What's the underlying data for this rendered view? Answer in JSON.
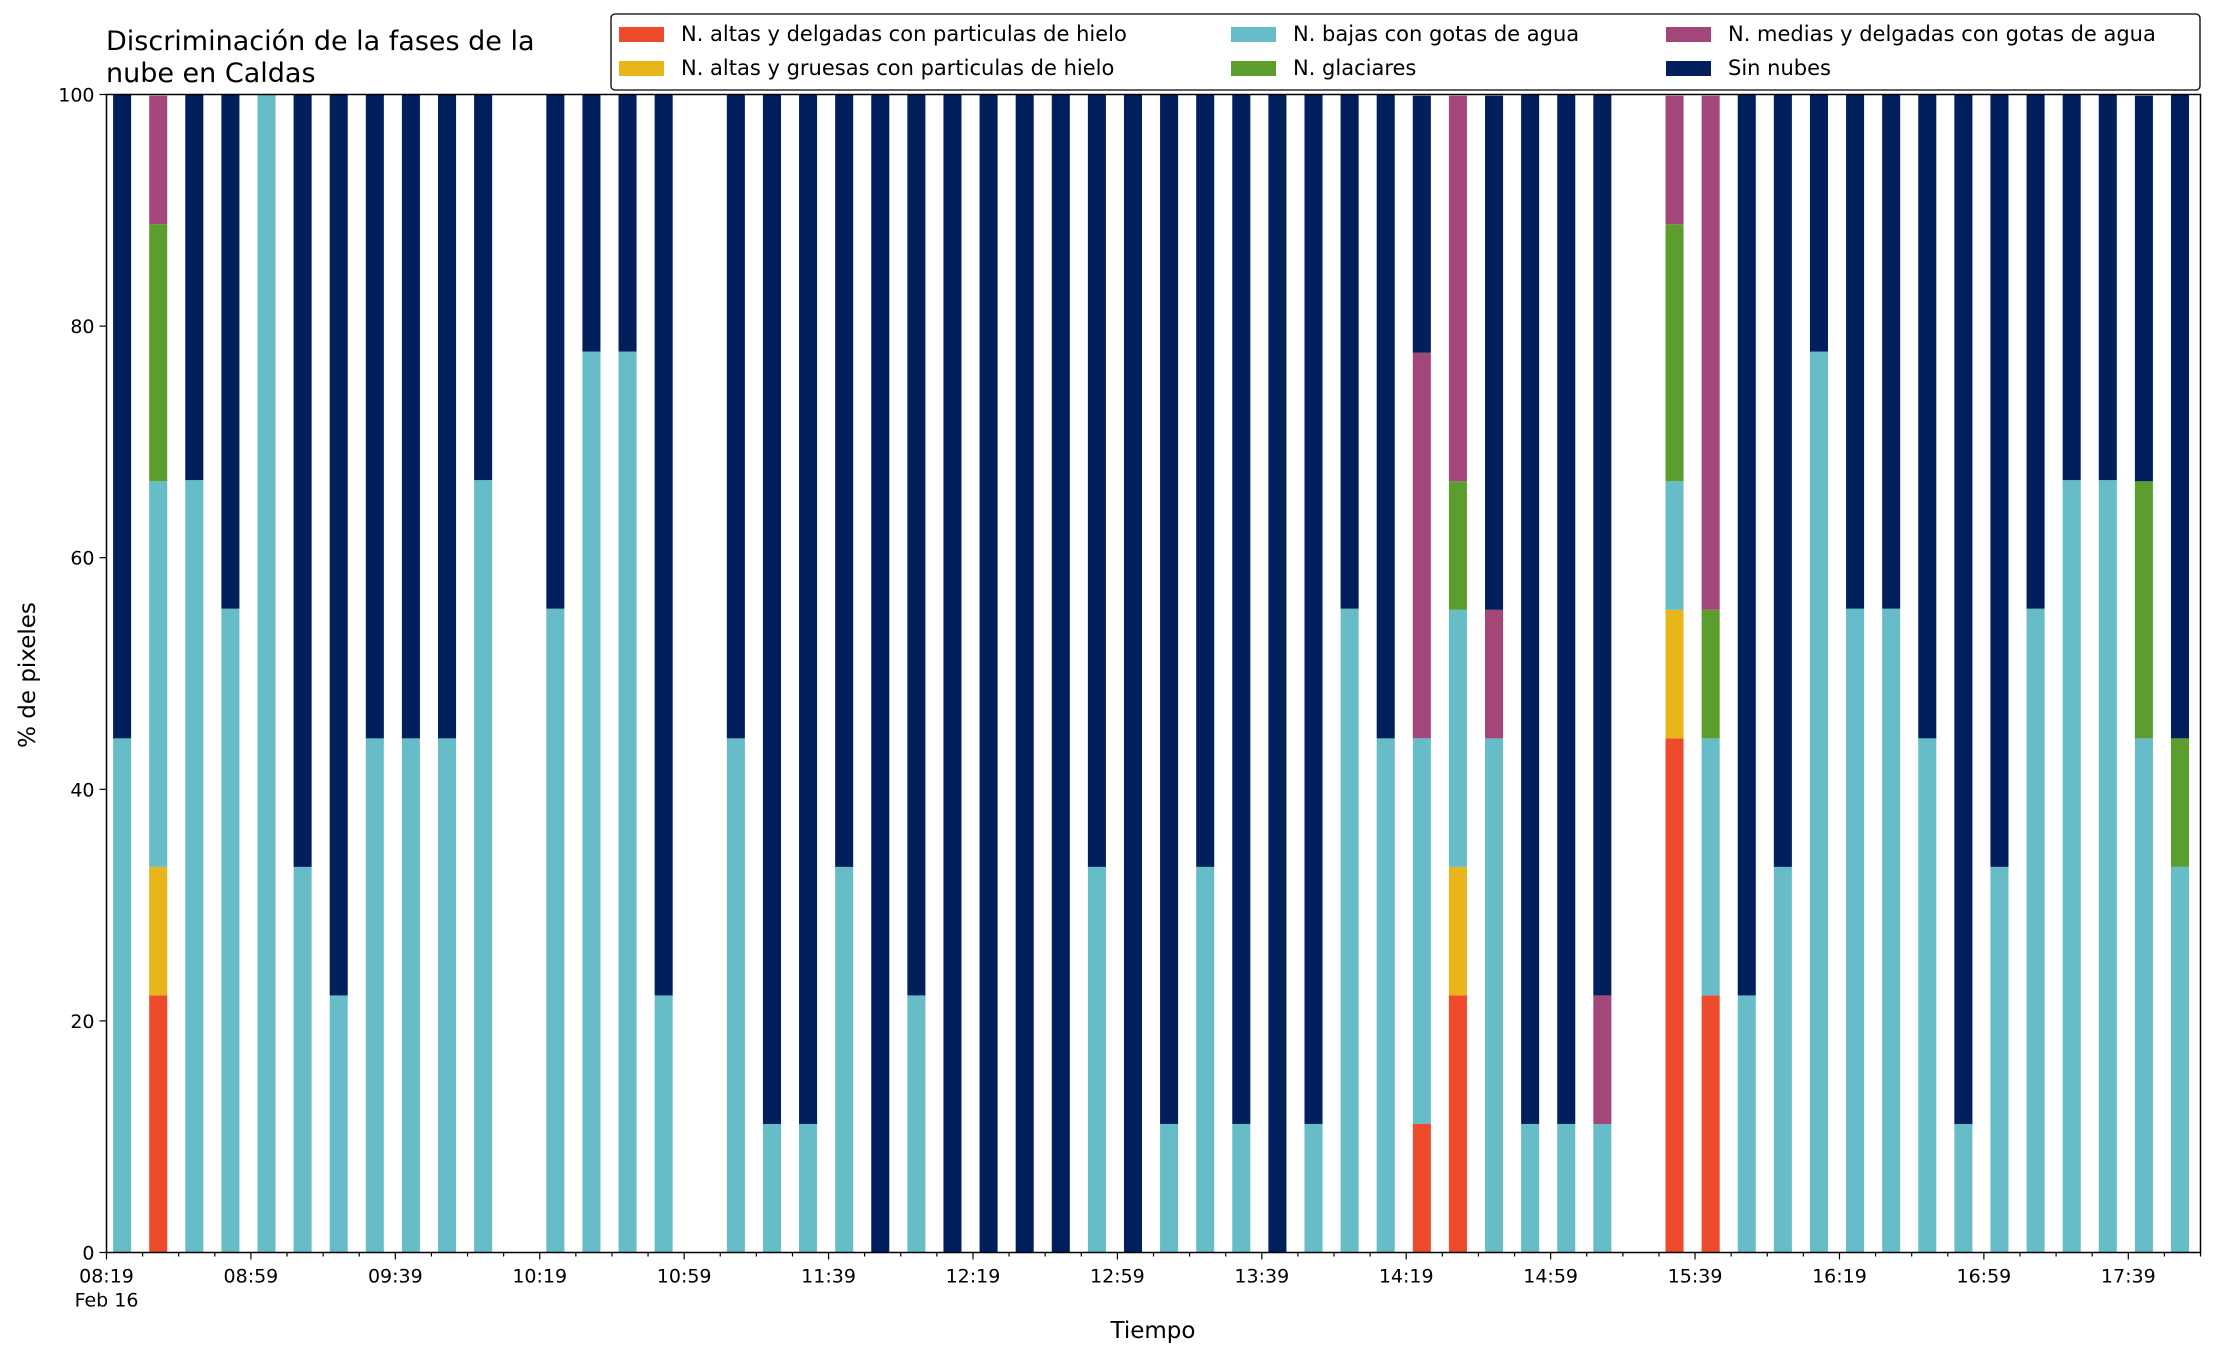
{
  "chart_data": {
    "type": "bar",
    "stacked": true,
    "title_lines": [
      "Discriminación de la fases de la",
      "nube en Caldas"
    ],
    "xlabel": "Tiempo",
    "ylabel": "% de pixeles",
    "ylim": [
      0,
      100
    ],
    "yticks": [
      0,
      20,
      40,
      60,
      80,
      100
    ],
    "grid": false,
    "legend_position": "top-right",
    "legend_columns": 3,
    "x_start": "08:19",
    "x_end": "17:59",
    "x_step_minutes": 10,
    "x_date_label": "Feb 16",
    "x_tick_labels": [
      "08:19",
      "08:59",
      "09:39",
      "10:19",
      "10:59",
      "11:39",
      "12:19",
      "12:59",
      "13:39",
      "14:19",
      "14:59",
      "15:39",
      "16:19",
      "16:59",
      "17:39"
    ],
    "times": [
      "08:19",
      "08:29",
      "08:39",
      "08:49",
      "08:59",
      "09:09",
      "09:19",
      "09:29",
      "09:39",
      "09:49",
      "09:59",
      "10:09",
      "10:19",
      "10:29",
      "10:39",
      "10:49",
      "10:59",
      "11:09",
      "11:19",
      "11:29",
      "11:39",
      "11:49",
      "11:59",
      "12:09",
      "12:19",
      "12:29",
      "12:39",
      "12:49",
      "12:59",
      "13:09",
      "13:19",
      "13:29",
      "13:39",
      "13:49",
      "13:59",
      "14:09",
      "14:19",
      "14:29",
      "14:39",
      "14:49",
      "14:59",
      "15:09",
      "15:19",
      "15:29",
      "15:39",
      "15:49",
      "15:59",
      "16:09",
      "16:19",
      "16:29",
      "16:39",
      "16:49",
      "16:59",
      "17:09",
      "17:19",
      "17:29",
      "17:39",
      "17:49"
    ],
    "series": [
      {
        "name": "N. altas y delgadas con particulas de hielo",
        "color": "#ee4a2c",
        "values": [
          0,
          22.2,
          0,
          0,
          0,
          0,
          0,
          0,
          0,
          0,
          0,
          null,
          0,
          0,
          0,
          null,
          0,
          0,
          0,
          0,
          0,
          0,
          0,
          0,
          0,
          0,
          0,
          0,
          0,
          0,
          0,
          0,
          0,
          0,
          0,
          0,
          11.1,
          22.2,
          0,
          0,
          0,
          0,
          null,
          44.4,
          22.2,
          0,
          0,
          0,
          0,
          0,
          0,
          0,
          0,
          0,
          0,
          0,
          0,
          0
        ]
      },
      {
        "name": "N. altas y gruesas con particulas de hielo",
        "color": "#e8b51b",
        "values": [
          0,
          11.1,
          0,
          0,
          0,
          0,
          0,
          0,
          0,
          0,
          0,
          null,
          0,
          0,
          0,
          null,
          0,
          0,
          0,
          0,
          0,
          0,
          0,
          0,
          0,
          0,
          0,
          0,
          0,
          0,
          0,
          0,
          0,
          0,
          0,
          0,
          0,
          11.1,
          0,
          0,
          0,
          0,
          null,
          11.1,
          0,
          0,
          0,
          0,
          0,
          0,
          0,
          0,
          0,
          0,
          0,
          0,
          0,
          0
        ]
      },
      {
        "name": "N. bajas con gotas de agua",
        "color": "#66bdc8",
        "values": [
          44.4,
          33.3,
          66.7,
          55.6,
          100,
          33.3,
          22.2,
          44.4,
          44.4,
          44.4,
          66.7,
          null,
          55.6,
          77.8,
          77.8,
          22.2,
          null,
          44.4,
          11.1,
          11.1,
          33.3,
          0,
          22.2,
          0,
          0,
          0,
          0,
          33.3,
          0,
          11.1,
          33.3,
          11.1,
          0,
          11.1,
          55.6,
          44.4,
          33.3,
          22.2,
          44.4,
          11.1,
          11.1,
          11.1,
          null,
          11.1,
          22.2,
          22.2,
          33.3,
          77.8,
          55.6,
          55.6,
          44.4,
          11.1,
          33.3,
          55.6,
          66.7,
          66.7,
          44.4,
          33.3
        ]
      },
      {
        "name": "N. glaciares",
        "color": "#5c9e2e",
        "values": [
          0,
          22.2,
          0,
          0,
          0,
          0,
          0,
          0,
          0,
          0,
          0,
          null,
          0,
          0,
          0,
          0,
          null,
          0,
          0,
          0,
          0,
          0,
          0,
          0,
          0,
          0,
          0,
          0,
          0,
          0,
          0,
          0,
          0,
          0,
          0,
          0,
          0,
          11.1,
          0,
          0,
          0,
          0,
          null,
          22.2,
          11.1,
          0,
          0,
          0,
          0,
          0,
          0,
          0,
          0,
          0,
          0,
          0,
          22.2,
          11.1
        ]
      },
      {
        "name": "N. medias y delgadas con gotas de agua",
        "color": "#a3467a",
        "values": [
          0,
          11.1,
          0,
          0,
          0,
          0,
          0,
          0,
          0,
          0,
          0,
          null,
          0,
          0,
          0,
          0,
          null,
          0,
          0,
          0,
          0,
          0,
          0,
          0,
          0,
          0,
          0,
          0,
          0,
          0,
          0,
          0,
          0,
          0,
          0,
          0,
          33.3,
          33.3,
          11.1,
          0,
          0,
          11.1,
          null,
          11.1,
          44.4,
          0,
          0,
          0,
          0,
          0,
          0,
          0,
          0,
          0,
          0,
          0,
          0,
          0
        ]
      },
      {
        "name": "Sin nubes",
        "color": "#001f5c",
        "values": [
          55.6,
          0,
          33.3,
          44.4,
          0,
          66.7,
          77.8,
          55.6,
          55.6,
          55.6,
          33.3,
          null,
          44.4,
          22.2,
          22.2,
          77.8,
          null,
          55.6,
          88.9,
          88.9,
          66.7,
          100,
          77.8,
          100,
          100,
          100,
          100,
          66.7,
          100,
          88.9,
          66.7,
          88.9,
          100,
          88.9,
          44.4,
          55.6,
          22.2,
          0,
          44.4,
          88.9,
          88.9,
          77.8,
          null,
          0,
          0,
          77.8,
          66.7,
          22.2,
          44.4,
          44.4,
          55.6,
          88.9,
          66.7,
          44.4,
          33.3,
          33.3,
          33.3,
          55.6
        ]
      }
    ]
  }
}
